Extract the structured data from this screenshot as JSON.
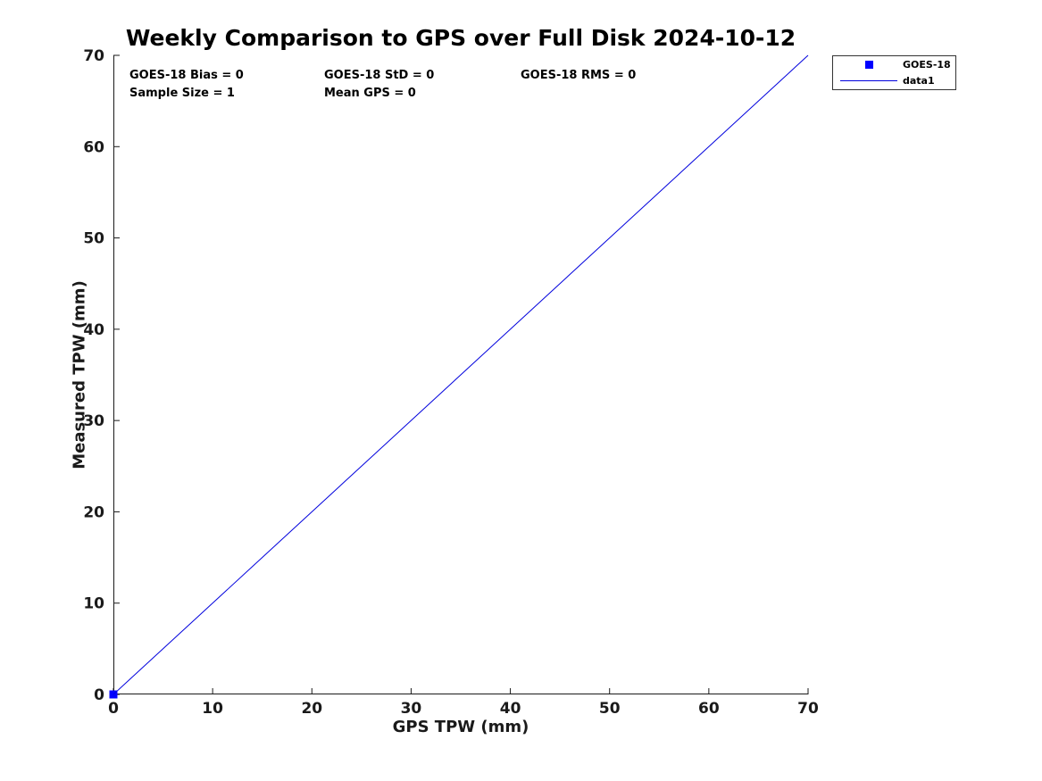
{
  "title": "Weekly Comparison to GPS over Full Disk 2024-10-12",
  "annotations": {
    "bias": "GOES-18 Bias = 0",
    "std": "GOES-18 StD = 0",
    "rms": "GOES-18 RMS = 0",
    "sample_size": "Sample Size = 1",
    "mean_gps": "Mean GPS = 0"
  },
  "legend": {
    "position": "outside-top-right",
    "entries": [
      {
        "label": "GOES-18",
        "marker": "square",
        "color": "#0000ff"
      },
      {
        "label": "data1",
        "marker": "line",
        "color": "#0000dd"
      }
    ]
  },
  "chart_data": {
    "type": "scatter",
    "title": "Weekly Comparison to GPS over Full Disk 2024-10-12",
    "xlabel": "GPS TPW (mm)",
    "ylabel": "Measured TPW (mm)",
    "xlim": [
      0,
      70
    ],
    "ylim": [
      0,
      70
    ],
    "xticks": [
      0,
      10,
      20,
      30,
      40,
      50,
      60,
      70
    ],
    "yticks": [
      0,
      10,
      20,
      30,
      40,
      50,
      60,
      70
    ],
    "grid": false,
    "axis_color": "#1a1a1a",
    "tick_length": 7,
    "series": [
      {
        "name": "GOES-18",
        "type": "scatter",
        "marker": "square",
        "color": "#0000ff",
        "marker_size": 9,
        "points": [
          [
            0,
            0
          ]
        ]
      },
      {
        "name": "data1",
        "type": "line",
        "color": "#0000dd",
        "line_width": 1,
        "points": [
          [
            0,
            0
          ],
          [
            70,
            70
          ]
        ]
      }
    ]
  }
}
